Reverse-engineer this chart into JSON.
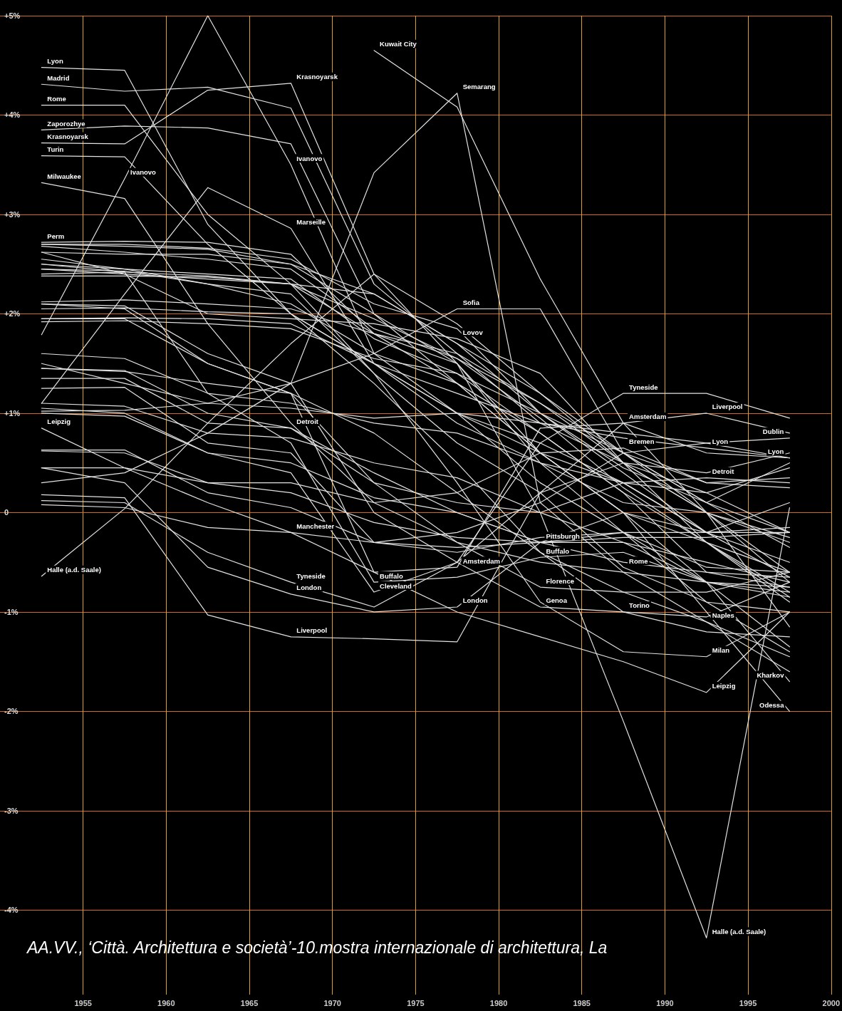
{
  "chart_data": {
    "type": "line",
    "color": "#e2e2e2",
    "grid": true,
    "marker": "none",
    "line_style": "solid",
    "xlim": [
      1950,
      2000
    ],
    "xticks": [
      1955,
      1960,
      1965,
      1970,
      1975,
      1980,
      1985,
      1990,
      1995,
      2000
    ],
    "ylim": [
      -4.85,
      5
    ],
    "yticks": [
      {
        "value": 5,
        "label": "+5%"
      },
      {
        "value": 4,
        "label": "+4%"
      },
      {
        "value": 3,
        "label": "+3%"
      },
      {
        "value": 2,
        "label": "+2%"
      },
      {
        "value": 1,
        "label": "+1%"
      },
      {
        "value": 0,
        "label": "0"
      },
      {
        "value": -1,
        "label": "-1%"
      },
      {
        "value": -2,
        "label": "-2%"
      },
      {
        "value": -3,
        "label": "-3%"
      },
      {
        "value": -4,
        "label": "-4%"
      }
    ],
    "x": [
      1952.5,
      1957.5,
      1962.5,
      1967.5,
      1972.5,
      1977.5,
      1982.5,
      1987.5,
      1992.5,
      1997.5
    ],
    "series": [
      {
        "values": [
          4.48,
          4.45,
          2.9,
          2.0,
          1.5,
          1.2,
          0.9,
          0.75,
          0.65,
          0.55
        ]
      },
      {
        "values": [
          4.31,
          4.24,
          4.28,
          4.07,
          2.3,
          1.6,
          1.1,
          0.5,
          0.0,
          -0.3
        ]
      },
      {
        "values": [
          3.72,
          3.71,
          4.25,
          4.32,
          2.4,
          1.9,
          1.2,
          0.6,
          0.1,
          -0.2
        ]
      },
      {
        "values": [
          4.1,
          4.1,
          3.0,
          2.3,
          1.4,
          0.7,
          0.2,
          -0.55,
          -0.9,
          -1.0
        ]
      },
      {
        "values": [
          3.85,
          3.89,
          3.87,
          3.71,
          2.0,
          1.3,
          0.6,
          0.0,
          -0.7,
          -1.35
        ]
      },
      {
        "values": [
          3.59,
          3.58,
          2.7,
          2.0,
          1.3,
          0.5,
          -0.4,
          -1.0,
          -1.2,
          -1.25
        ]
      },
      {
        "values": [
          3.32,
          3.16,
          1.9,
          0.9,
          0.1,
          -0.3,
          -0.5,
          -0.6,
          -0.7,
          -0.8
        ]
      },
      {
        "values": [
          1.79,
          3.36,
          5.0,
          3.5,
          1.6,
          1.0,
          0.3,
          -0.2,
          -0.9,
          -1.4
        ]
      },
      {
        "values": [
          null,
          null,
          null,
          null,
          4.65,
          4.08,
          2.35,
          0.9,
          0.0,
          -0.6
        ]
      },
      {
        "values": [
          0.3,
          0.4,
          0.8,
          1.3,
          3.42,
          4.22,
          0.1,
          -0.6,
          -1.1,
          -1.6
        ]
      },
      {
        "values": [
          1.1,
          2.2,
          3.27,
          2.86,
          1.5,
          1.0,
          0.6,
          0.3,
          -0.2,
          -0.5
        ]
      },
      {
        "values": [
          2.72,
          2.73,
          2.72,
          2.6,
          1.8,
          1.6,
          0.9,
          0.5,
          0.0,
          -0.7
        ]
      },
      {
        "values": [
          2.7,
          2.7,
          2.66,
          2.55,
          2.1,
          1.85,
          1.0,
          0.45,
          0.1,
          -0.35
        ]
      },
      {
        "values": [
          2.68,
          2.62,
          2.55,
          2.45,
          1.85,
          1.55,
          0.95,
          0.25,
          -0.3,
          -0.6
        ]
      },
      {
        "values": [
          2.62,
          2.6,
          2.6,
          2.5,
          2.2,
          1.7,
          1.2,
          0.5,
          0.2,
          -0.2
        ]
      },
      {
        "values": [
          2.55,
          2.45,
          2.4,
          2.35,
          1.75,
          1.4,
          0.8,
          0.2,
          -0.6,
          -0.75
        ]
      },
      {
        "values": [
          2.5,
          2.42,
          2.38,
          2.3,
          1.8,
          1.5,
          0.6,
          0.0,
          -0.3,
          -0.85
        ]
      },
      {
        "values": [
          2.45,
          2.4,
          2.35,
          2.3,
          1.95,
          1.55,
          1.1,
          0.6,
          0.1,
          0.5
        ]
      },
      {
        "values": [
          2.38,
          2.38,
          2.37,
          2.3,
          2.2,
          1.7,
          1.0,
          0.4,
          -0.2,
          -0.2
        ]
      },
      {
        "values": [
          2.12,
          2.14,
          2.1,
          2.05,
          1.8,
          1.3,
          0.8,
          0.2,
          -0.3,
          -0.8
        ]
      },
      {
        "values": [
          2.05,
          2.06,
          2.02,
          2.0,
          1.5,
          1.0,
          0.7,
          0.3,
          -0.2,
          -0.65
        ]
      },
      {
        "values": [
          1.95,
          1.96,
          1.95,
          1.9,
          1.5,
          0.9,
          0.5,
          0.1,
          0.0,
          -0.25
        ]
      },
      {
        "values": [
          1.92,
          1.93,
          1.9,
          1.85,
          1.55,
          1.4,
          1.0,
          0.6,
          0.3,
          0.35
        ]
      },
      {
        "values": [
          1.5,
          1.3,
          1.1,
          1.3,
          1.6,
          2.05,
          2.05,
          0.6,
          0.0,
          -1.15
        ]
      },
      {
        "values": [
          2.62,
          2.4,
          2.0,
          1.95,
          1.9,
          1.75,
          1.4,
          0.5,
          -0.3,
          -0.9
        ]
      },
      {
        "values": [
          1.6,
          1.55,
          1.2,
          1.1,
          0.9,
          0.8,
          0.5,
          0.3,
          0.2,
          0.45
        ]
      },
      {
        "values": [
          1.45,
          1.43,
          1.0,
          0.85,
          0.4,
          0.0,
          -0.3,
          -0.5,
          -0.6,
          -0.65
        ]
      },
      {
        "values": [
          1.35,
          1.35,
          0.9,
          0.85,
          0.3,
          0.1,
          0.0,
          0.3,
          0.35,
          0.3
        ]
      },
      {
        "values": [
          1.25,
          1.26,
          0.7,
          0.6,
          -0.3,
          -0.2,
          0.1,
          0.6,
          0.7,
          0.75
        ]
      },
      {
        "values": [
          1.1,
          1.07,
          0.8,
          0.75,
          0.5,
          0.35,
          0.0,
          -0.3,
          -0.5,
          -0.7
        ]
      },
      {
        "values": [
          1.02,
          1.03,
          1.1,
          1.05,
          0.95,
          1.0,
          0.9,
          0.8,
          0.7,
          0.55
        ]
      },
      {
        "values": [
          1.0,
          0.97,
          0.6,
          0.5,
          0.15,
          0.0,
          -0.3,
          -0.2,
          -0.55,
          -0.6
        ]
      },
      {
        "values": [
          0.85,
          0.45,
          0.1,
          -0.2,
          -0.6,
          -1.0,
          -1.25,
          -1.5,
          -1.81,
          -1.0
        ]
      },
      {
        "values": [
          0.63,
          0.63,
          0.2,
          0.05,
          -0.3,
          -0.4,
          -0.25,
          -0.2,
          -0.2,
          -0.15
        ]
      },
      {
        "values": [
          0.45,
          0.45,
          0.3,
          0.2,
          -0.1,
          -0.25,
          -0.3,
          -0.25,
          -0.25,
          -0.2
        ]
      },
      {
        "values": [
          0.18,
          0.15,
          -1.03,
          -1.25,
          -1.27,
          -1.3,
          0.2,
          0.9,
          1.0,
          0.8
        ]
      },
      {
        "values": [
          0.12,
          0.1,
          -0.4,
          -0.7,
          -0.95,
          -0.5,
          0.7,
          1.2,
          1.2,
          0.95
        ]
      },
      {
        "values": [
          0.08,
          0.05,
          -0.15,
          -0.2,
          -0.3,
          -0.35,
          -0.3,
          -0.3,
          -0.7,
          -0.85
        ]
      },
      {
        "values": [
          0.45,
          0.3,
          -0.55,
          -0.82,
          -1.0,
          -0.95,
          -0.3,
          0.0,
          -0.2,
          0.1
        ]
      },
      {
        "values": [
          -0.64,
          0.04,
          0.9,
          1.7,
          2.4,
          1.5,
          0.0,
          -2.1,
          -4.28,
          0.05
        ]
      },
      {
        "values": [
          1.05,
          1.0,
          0.6,
          0.4,
          -0.8,
          -0.5,
          0.2,
          0.5,
          0.4,
          0.6
        ]
      },
      {
        "values": [
          2.4,
          2.42,
          1.2,
          0.7,
          -0.7,
          -0.65,
          -0.45,
          -0.4,
          -0.7,
          -0.75
        ]
      },
      {
        "values": [
          2.1,
          2.05,
          1.5,
          1.2,
          -0.6,
          -0.55,
          0.85,
          0.9,
          0.6,
          0.55
        ]
      },
      {
        "values": [
          2.45,
          2.43,
          2.3,
          2.2,
          1.4,
          0.3,
          -0.9,
          -1.4,
          -1.45,
          -1.0
        ]
      },
      {
        "values": [
          1.45,
          1.42,
          1.3,
          1.2,
          0.8,
          0.2,
          -0.4,
          -0.8,
          -1.1,
          -1.45
        ]
      },
      {
        "values": [
          2.7,
          2.68,
          2.65,
          2.5,
          2.0,
          1.5,
          0.5,
          -0.2,
          -0.7,
          -1.7
        ]
      },
      {
        "values": [
          2.5,
          2.45,
          2.3,
          2.1,
          1.6,
          1.3,
          0.6,
          0.0,
          -1.0,
          -2.0
        ]
      },
      {
        "values": [
          2.1,
          2.08,
          1.6,
          1.3,
          0.0,
          -0.5,
          -0.95,
          -1.0,
          -1.05,
          -0.7
        ]
      },
      {
        "values": [
          1.95,
          1.95,
          1.5,
          1.2,
          0.3,
          -0.3,
          -0.75,
          -0.8,
          -0.8,
          -0.6
        ]
      },
      {
        "values": [
          0.62,
          0.6,
          0.3,
          0.3,
          0.1,
          0.2,
          0.6,
          0.65,
          0.3,
          0.25
        ]
      }
    ],
    "annotations": [
      {
        "text": "Lyon",
        "x": 1952.5,
        "y": 4.48
      },
      {
        "text": "Madrid",
        "x": 1952.5,
        "y": 4.31
      },
      {
        "text": "Rome",
        "x": 1952.5,
        "y": 4.1
      },
      {
        "text": "Zaporozhye",
        "x": 1952.5,
        "y": 3.85
      },
      {
        "text": "Krasnoyarsk",
        "x": 1952.5,
        "y": 3.72
      },
      {
        "text": "Turin",
        "x": 1952.5,
        "y": 3.59
      },
      {
        "text": "Milwaukee",
        "x": 1952.5,
        "y": 3.32
      },
      {
        "text": "Ivanovo",
        "x": 1957.5,
        "y": 3.36
      },
      {
        "text": "Perm",
        "x": 1952.5,
        "y": 2.72
      },
      {
        "text": "Krasnoyarsk",
        "x": 1967.5,
        "y": 4.32
      },
      {
        "text": "Ivanovo",
        "x": 1967.5,
        "y": 3.5
      },
      {
        "text": "Marseille",
        "x": 1967.5,
        "y": 2.86
      },
      {
        "text": "Kuwait City",
        "x": 1972.5,
        "y": 4.65
      },
      {
        "text": "Semarang",
        "x": 1977.5,
        "y": 4.22
      },
      {
        "text": "Sofia",
        "x": 1977.5,
        "y": 2.05
      },
      {
        "text": "Lovov",
        "x": 1977.5,
        "y": 1.75
      },
      {
        "text": "Leipzig",
        "x": 1952.5,
        "y": 0.85
      },
      {
        "text": "Detroit",
        "x": 1967.5,
        "y": 0.85
      },
      {
        "text": "Halle (a.d. Saale)",
        "x": 1952.5,
        "y": -0.64
      },
      {
        "text": "Manchester",
        "x": 1967.5,
        "y": -0.2
      },
      {
        "text": "Tyneside",
        "x": 1967.5,
        "y": -0.7
      },
      {
        "text": "London",
        "x": 1967.5,
        "y": -0.82
      },
      {
        "text": "Liverpool",
        "x": 1967.5,
        "y": -1.25
      },
      {
        "text": "Cleveland",
        "x": 1972.5,
        "y": -0.8
      },
      {
        "text": "Buffalo",
        "x": 1972.5,
        "y": -0.7
      },
      {
        "text": "Amsterdam",
        "x": 1977.5,
        "y": -0.55
      },
      {
        "text": "London",
        "x": 1977.5,
        "y": -0.95
      },
      {
        "text": "Tyneside",
        "x": 1987.5,
        "y": 1.2
      },
      {
        "text": "Liverpool",
        "x": 1992.5,
        "y": 1.0
      },
      {
        "text": "Amsterdam",
        "x": 1987.5,
        "y": 0.9
      },
      {
        "text": "Lyon",
        "x": 1992.5,
        "y": 0.65
      },
      {
        "text": "Dublin",
        "x": 1997.5,
        "y": 0.75
      },
      {
        "text": "Bremen",
        "x": 1987.5,
        "y": 0.65
      },
      {
        "text": "Lyon",
        "x": 1997.5,
        "y": 0.55
      },
      {
        "text": "Detroit",
        "x": 1992.5,
        "y": 0.35
      },
      {
        "text": "Buffalo",
        "x": 1982.5,
        "y": -0.45
      },
      {
        "text": "Pittsburgh",
        "x": 1982.5,
        "y": -0.3
      },
      {
        "text": "Florence",
        "x": 1982.5,
        "y": -0.75
      },
      {
        "text": "Rome",
        "x": 1987.5,
        "y": -0.55
      },
      {
        "text": "Genoa",
        "x": 1982.5,
        "y": -0.95
      },
      {
        "text": "Torino",
        "x": 1987.5,
        "y": -1.0
      },
      {
        "text": "Naples",
        "x": 1992.5,
        "y": -1.1
      },
      {
        "text": "Kharkov",
        "x": 1997.5,
        "y": -1.7
      },
      {
        "text": "Milan",
        "x": 1992.5,
        "y": -1.45
      },
      {
        "text": "Leipzig",
        "x": 1992.5,
        "y": -1.81
      },
      {
        "text": "Odessa",
        "x": 1997.5,
        "y": -2.0
      },
      {
        "text": "Halle (a.d. Saale)",
        "x": 1992.5,
        "y": -4.28
      },
      "AA.VV., ‘Città. Architettura e società’-10.mostra internazionale di architettura, La"
    ]
  }
}
